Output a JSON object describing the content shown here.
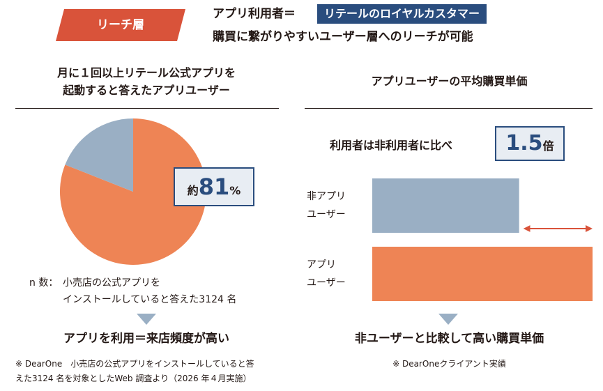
{
  "banner": {
    "tag_label": "リーチ層",
    "line1_prefix": "アプリ利用者＝",
    "line1_highlight": "リテールのロイヤルカスタマー",
    "line2": "購買に繋がりやすいユーザー層へのリーチが可能"
  },
  "left": {
    "title_line1": "月に１回以上リテール公式アプリを",
    "title_line2": "起動すると答えたアプリユーザー",
    "callout_prefix": "約",
    "callout_value": "81",
    "callout_unit": "%",
    "n_label": "n 数：",
    "n_line1": "小売店の公式アプリを",
    "n_line2": "インストールしていると答えた3124 名",
    "conclusion": "アプリを利用＝来店頻度が高い",
    "footnote_line1": "※ DearOne　小売店の公式アプリをインストールしていると答",
    "footnote_line2": "えた3124 名を対象としたWeb 調査より（2026 年４月実施）"
  },
  "right": {
    "title": "アプリユーザーの平均購買単価",
    "ratio_text": "利用者は非利用者に比べ",
    "ratio_value": "1.5",
    "ratio_unit": "倍",
    "conclusion": "非ユーザーと比較して高い購買単価",
    "footnote": "※ DearOneクライアント実績"
  },
  "colors": {
    "orange": "#ee8455",
    "blue_grey": "#9aafc4",
    "navy": "#2a4d7e",
    "red_tag": "#d9533a",
    "arrow": "#d9533a"
  },
  "chart_data": [
    {
      "type": "pie",
      "values": [
        81,
        19
      ],
      "slices": [
        {
          "label": "",
          "value": 81,
          "color": "#ee8455"
        },
        {
          "label": "",
          "value": 19,
          "color": "#9aafc4"
        }
      ]
    },
    {
      "type": "bar",
      "orientation": "horizontal",
      "categories": [
        "非アプリ\nユーザー",
        "アプリ\nユーザー"
      ],
      "category_lines": [
        [
          "非アプリ",
          "ユーザー"
        ],
        [
          "アプリ",
          "ユーザー"
        ]
      ],
      "values": [
        1.0,
        1.5
      ],
      "colors": [
        "#9aafc4",
        "#ee8455"
      ],
      "xlim": [
        0,
        1.5
      ]
    }
  ]
}
